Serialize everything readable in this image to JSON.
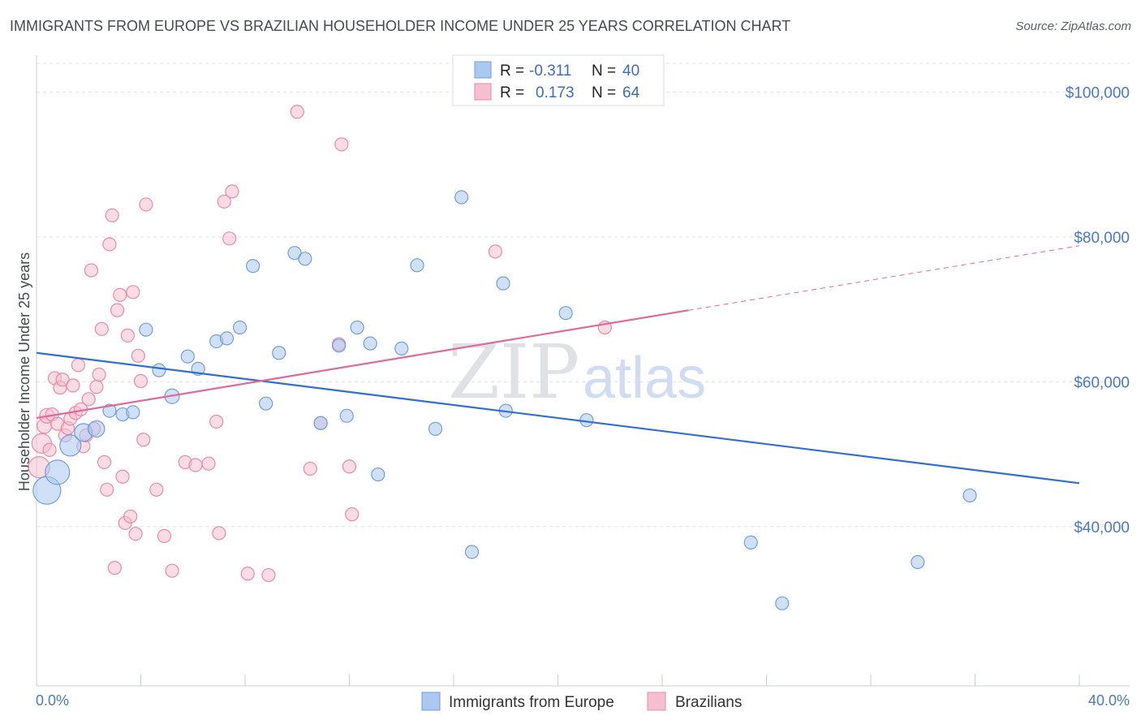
{
  "title": "IMMIGRANTS FROM EUROPE VS BRAZILIAN HOUSEHOLDER INCOME UNDER 25 YEARS CORRELATION CHART",
  "source": "Source: ZipAtlas.com",
  "watermark": {
    "zip": "ZIP",
    "atlas": "atlas"
  },
  "legend_box": {
    "rows": [
      {
        "r_label": "R =",
        "r_value": "-0.311",
        "n_label": "N =",
        "n_value": "40"
      },
      {
        "r_label": "R =",
        "r_value": "0.173",
        "n_label": "N =",
        "n_value": "64"
      }
    ]
  },
  "bottom_legend": [
    {
      "label": "Immigrants from Europe"
    },
    {
      "label": "Brazilians"
    }
  ],
  "colors": {
    "blue_fill": "#aac8f0",
    "blue_stroke": "#6f9fdc",
    "blue_line": "#2f6fd0",
    "pink_fill": "#f6bfd0",
    "pink_stroke": "#e88aa8",
    "pink_line": "#e06a96",
    "grid": "#dde1e6",
    "tick_label": "#4a78c8"
  },
  "chart_data": {
    "type": "scatter",
    "title": "IMMIGRANTS FROM EUROPE VS BRAZILIAN HOUSEHOLDER INCOME UNDER 25 YEARS CORRELATION CHART",
    "xlabel": "",
    "ylabel": "Householder Income Under 25 years",
    "xlim": [
      0,
      40
    ],
    "ylim": [
      18000,
      104000
    ],
    "x_tick_labels": [
      "0.0%",
      "40.0%"
    ],
    "y_ticks": [
      40000,
      60000,
      80000,
      100000
    ],
    "y_tick_labels": [
      "$40,000",
      "$60,000",
      "$80,000",
      "$100,000"
    ],
    "grid": true,
    "legend_position": "top-center",
    "series": [
      {
        "name": "Immigrants from Europe",
        "color": "blue",
        "trend": {
          "x0": 0,
          "y0": 64000,
          "x1": 40,
          "y1": 46000,
          "dashed_from": null
        },
        "points": [
          {
            "x": 0.4,
            "y": 45000,
            "s": 17
          },
          {
            "x": 0.8,
            "y": 47500,
            "s": 15
          },
          {
            "x": 1.3,
            "y": 51200,
            "s": 13
          },
          {
            "x": 1.8,
            "y": 53000,
            "s": 11
          },
          {
            "x": 2.3,
            "y": 53500,
            "s": 10
          },
          {
            "x": 2.8,
            "y": 56000,
            "s": 8
          },
          {
            "x": 3.3,
            "y": 55500,
            "s": 8
          },
          {
            "x": 3.7,
            "y": 55800,
            "s": 8
          },
          {
            "x": 4.2,
            "y": 67200,
            "s": 8
          },
          {
            "x": 4.7,
            "y": 61600,
            "s": 8
          },
          {
            "x": 5.2,
            "y": 58000,
            "s": 9
          },
          {
            "x": 5.8,
            "y": 63500,
            "s": 8
          },
          {
            "x": 6.2,
            "y": 61800,
            "s": 8
          },
          {
            "x": 6.9,
            "y": 65600,
            "s": 8
          },
          {
            "x": 7.3,
            "y": 66000,
            "s": 8
          },
          {
            "x": 7.8,
            "y": 67500,
            "s": 8
          },
          {
            "x": 8.3,
            "y": 76000,
            "s": 8
          },
          {
            "x": 8.8,
            "y": 57000,
            "s": 8
          },
          {
            "x": 9.3,
            "y": 64000,
            "s": 8
          },
          {
            "x": 9.9,
            "y": 77800,
            "s": 8
          },
          {
            "x": 10.3,
            "y": 77000,
            "s": 8
          },
          {
            "x": 10.9,
            "y": 54300,
            "s": 8
          },
          {
            "x": 11.6,
            "y": 65000,
            "s": 8
          },
          {
            "x": 11.9,
            "y": 55300,
            "s": 8
          },
          {
            "x": 12.3,
            "y": 67500,
            "s": 8
          },
          {
            "x": 12.8,
            "y": 65300,
            "s": 8
          },
          {
            "x": 13.1,
            "y": 47200,
            "s": 8
          },
          {
            "x": 14.0,
            "y": 64600,
            "s": 8
          },
          {
            "x": 14.6,
            "y": 76100,
            "s": 8
          },
          {
            "x": 15.3,
            "y": 53500,
            "s": 8
          },
          {
            "x": 16.3,
            "y": 85500,
            "s": 8
          },
          {
            "x": 16.7,
            "y": 36500,
            "s": 8
          },
          {
            "x": 17.9,
            "y": 73600,
            "s": 8
          },
          {
            "x": 18.0,
            "y": 56000,
            "s": 8
          },
          {
            "x": 20.3,
            "y": 69500,
            "s": 8
          },
          {
            "x": 21.1,
            "y": 54700,
            "s": 8
          },
          {
            "x": 27.4,
            "y": 37800,
            "s": 8
          },
          {
            "x": 28.6,
            "y": 29400,
            "s": 8
          },
          {
            "x": 33.8,
            "y": 35100,
            "s": 8
          },
          {
            "x": 35.8,
            "y": 44300,
            "s": 8
          }
        ]
      },
      {
        "name": "Brazilians",
        "color": "pink",
        "trend": {
          "x0": 0,
          "y0": 55000,
          "x1": 40,
          "y1": 78800,
          "dashed_from": 25
        }
      }
    ],
    "brazilians_points": [
      {
        "x": 0.1,
        "y": 48200,
        "s": 13
      },
      {
        "x": 0.2,
        "y": 51500,
        "s": 12
      },
      {
        "x": 0.3,
        "y": 53900,
        "s": 9
      },
      {
        "x": 0.4,
        "y": 55300,
        "s": 9
      },
      {
        "x": 0.5,
        "y": 50600,
        "s": 8
      },
      {
        "x": 0.6,
        "y": 55500,
        "s": 8
      },
      {
        "x": 0.7,
        "y": 60500,
        "s": 8
      },
      {
        "x": 0.8,
        "y": 54200,
        "s": 8
      },
      {
        "x": 0.9,
        "y": 59200,
        "s": 8
      },
      {
        "x": 1.0,
        "y": 60300,
        "s": 8
      },
      {
        "x": 1.1,
        "y": 52600,
        "s": 8
      },
      {
        "x": 1.2,
        "y": 53600,
        "s": 8
      },
      {
        "x": 1.3,
        "y": 54900,
        "s": 8
      },
      {
        "x": 1.4,
        "y": 59500,
        "s": 8
      },
      {
        "x": 1.5,
        "y": 55700,
        "s": 8
      },
      {
        "x": 1.6,
        "y": 62300,
        "s": 8
      },
      {
        "x": 1.7,
        "y": 56200,
        "s": 8
      },
      {
        "x": 1.8,
        "y": 51100,
        "s": 8
      },
      {
        "x": 1.9,
        "y": 52600,
        "s": 8
      },
      {
        "x": 2.0,
        "y": 57600,
        "s": 8
      },
      {
        "x": 2.1,
        "y": 75400,
        "s": 8
      },
      {
        "x": 2.2,
        "y": 53500,
        "s": 8
      },
      {
        "x": 2.3,
        "y": 59300,
        "s": 8
      },
      {
        "x": 2.4,
        "y": 61000,
        "s": 8
      },
      {
        "x": 2.5,
        "y": 67300,
        "s": 8
      },
      {
        "x": 2.6,
        "y": 48900,
        "s": 8
      },
      {
        "x": 2.7,
        "y": 45100,
        "s": 8
      },
      {
        "x": 2.8,
        "y": 79000,
        "s": 8
      },
      {
        "x": 2.9,
        "y": 83000,
        "s": 8
      },
      {
        "x": 3.0,
        "y": 34300,
        "s": 8
      },
      {
        "x": 3.1,
        "y": 69900,
        "s": 8
      },
      {
        "x": 3.2,
        "y": 72000,
        "s": 8
      },
      {
        "x": 3.3,
        "y": 46900,
        "s": 8
      },
      {
        "x": 3.4,
        "y": 40500,
        "s": 8
      },
      {
        "x": 3.5,
        "y": 66400,
        "s": 8
      },
      {
        "x": 3.6,
        "y": 41400,
        "s": 8
      },
      {
        "x": 3.7,
        "y": 72400,
        "s": 8
      },
      {
        "x": 3.8,
        "y": 39000,
        "s": 8
      },
      {
        "x": 3.9,
        "y": 63600,
        "s": 8
      },
      {
        "x": 4.0,
        "y": 60100,
        "s": 8
      },
      {
        "x": 4.1,
        "y": 52000,
        "s": 8
      },
      {
        "x": 4.2,
        "y": 84500,
        "s": 8
      },
      {
        "x": 4.6,
        "y": 45100,
        "s": 8
      },
      {
        "x": 4.9,
        "y": 38700,
        "s": 8
      },
      {
        "x": 5.2,
        "y": 33900,
        "s": 8
      },
      {
        "x": 5.7,
        "y": 48900,
        "s": 8
      },
      {
        "x": 6.1,
        "y": 48500,
        "s": 8
      },
      {
        "x": 6.6,
        "y": 48700,
        "s": 8
      },
      {
        "x": 6.9,
        "y": 54500,
        "s": 8
      },
      {
        "x": 7.0,
        "y": 39100,
        "s": 8
      },
      {
        "x": 7.2,
        "y": 84900,
        "s": 8
      },
      {
        "x": 7.4,
        "y": 79800,
        "s": 8
      },
      {
        "x": 7.5,
        "y": 86300,
        "s": 8
      },
      {
        "x": 8.1,
        "y": 33500,
        "s": 8
      },
      {
        "x": 8.9,
        "y": 33300,
        "s": 8
      },
      {
        "x": 10.0,
        "y": 97300,
        "s": 8
      },
      {
        "x": 10.5,
        "y": 48000,
        "s": 8
      },
      {
        "x": 10.9,
        "y": 54300,
        "s": 8
      },
      {
        "x": 11.6,
        "y": 65200,
        "s": 8
      },
      {
        "x": 12.0,
        "y": 48300,
        "s": 8
      },
      {
        "x": 12.1,
        "y": 41700,
        "s": 8
      },
      {
        "x": 11.7,
        "y": 92800,
        "s": 8
      },
      {
        "x": 17.6,
        "y": 78000,
        "s": 8
      },
      {
        "x": 21.8,
        "y": 67500,
        "s": 8
      }
    ]
  }
}
